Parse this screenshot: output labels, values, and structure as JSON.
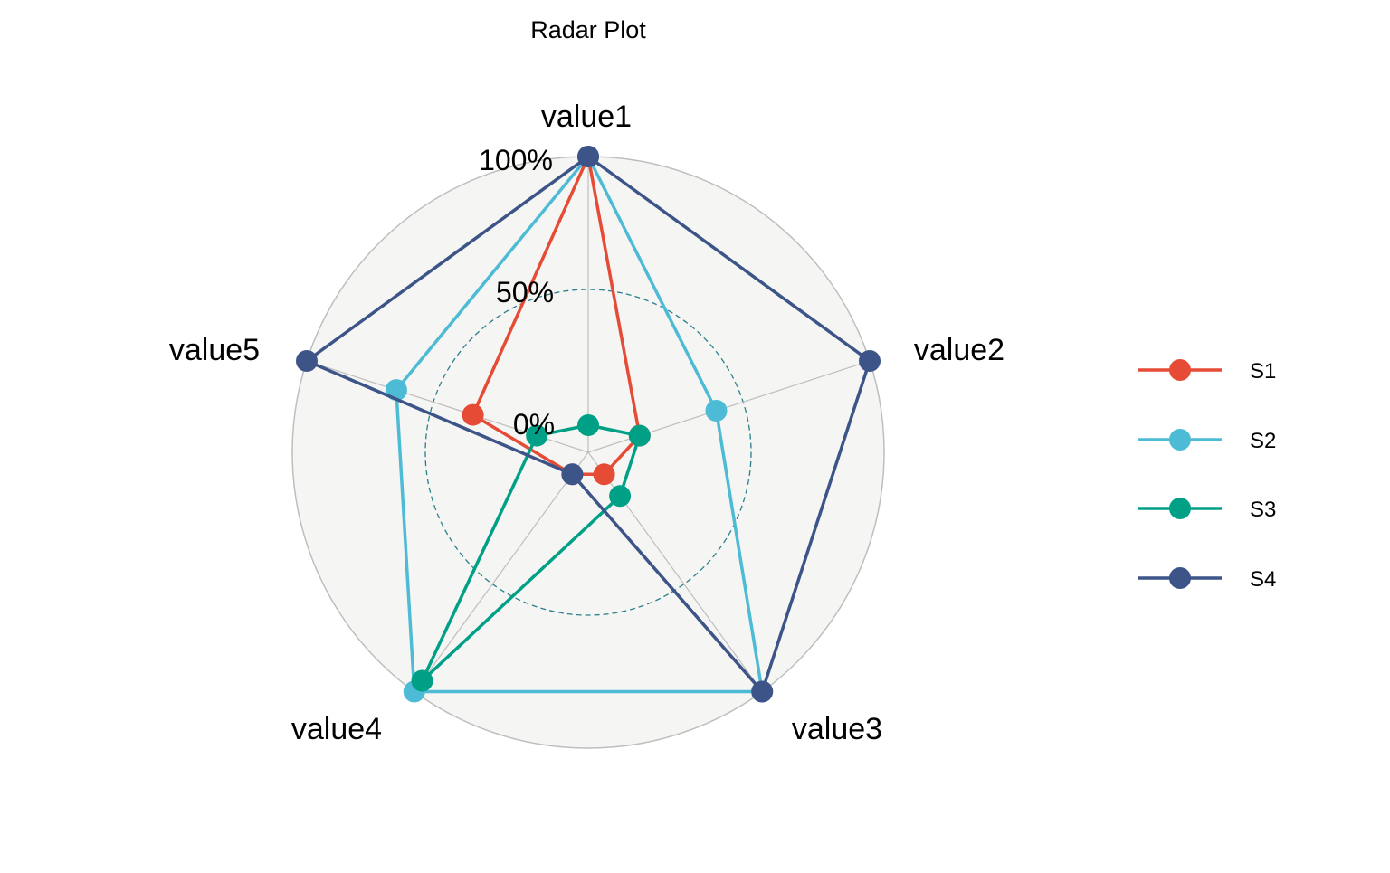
{
  "chart_data": {
    "type": "radar",
    "title": "Radar Plot",
    "axes": [
      "value1",
      "value2",
      "value3",
      "value4",
      "value5"
    ],
    "grid_labels": [
      "0%",
      "50%",
      "100%"
    ],
    "series": [
      {
        "name": "S1",
        "color": "#E64B35",
        "values": [
          1.0,
          0.1,
          0.0,
          0.0,
          0.35
        ]
      },
      {
        "name": "S2",
        "color": "#4DBBD5",
        "values": [
          1.0,
          0.4,
          1.0,
          1.0,
          0.65
        ]
      },
      {
        "name": "S3",
        "color": "#00A087",
        "values": [
          0.0,
          0.1,
          0.1,
          0.95,
          0.1
        ]
      },
      {
        "name": "S4",
        "color": "#3C5488",
        "values": [
          1.0,
          1.0,
          1.0,
          0.0,
          1.0
        ]
      }
    ],
    "legend_position": "right",
    "background_color": "#F5F5F3",
    "grid_color": "#BEBEBE",
    "midline_color": "#2A7F8C"
  }
}
